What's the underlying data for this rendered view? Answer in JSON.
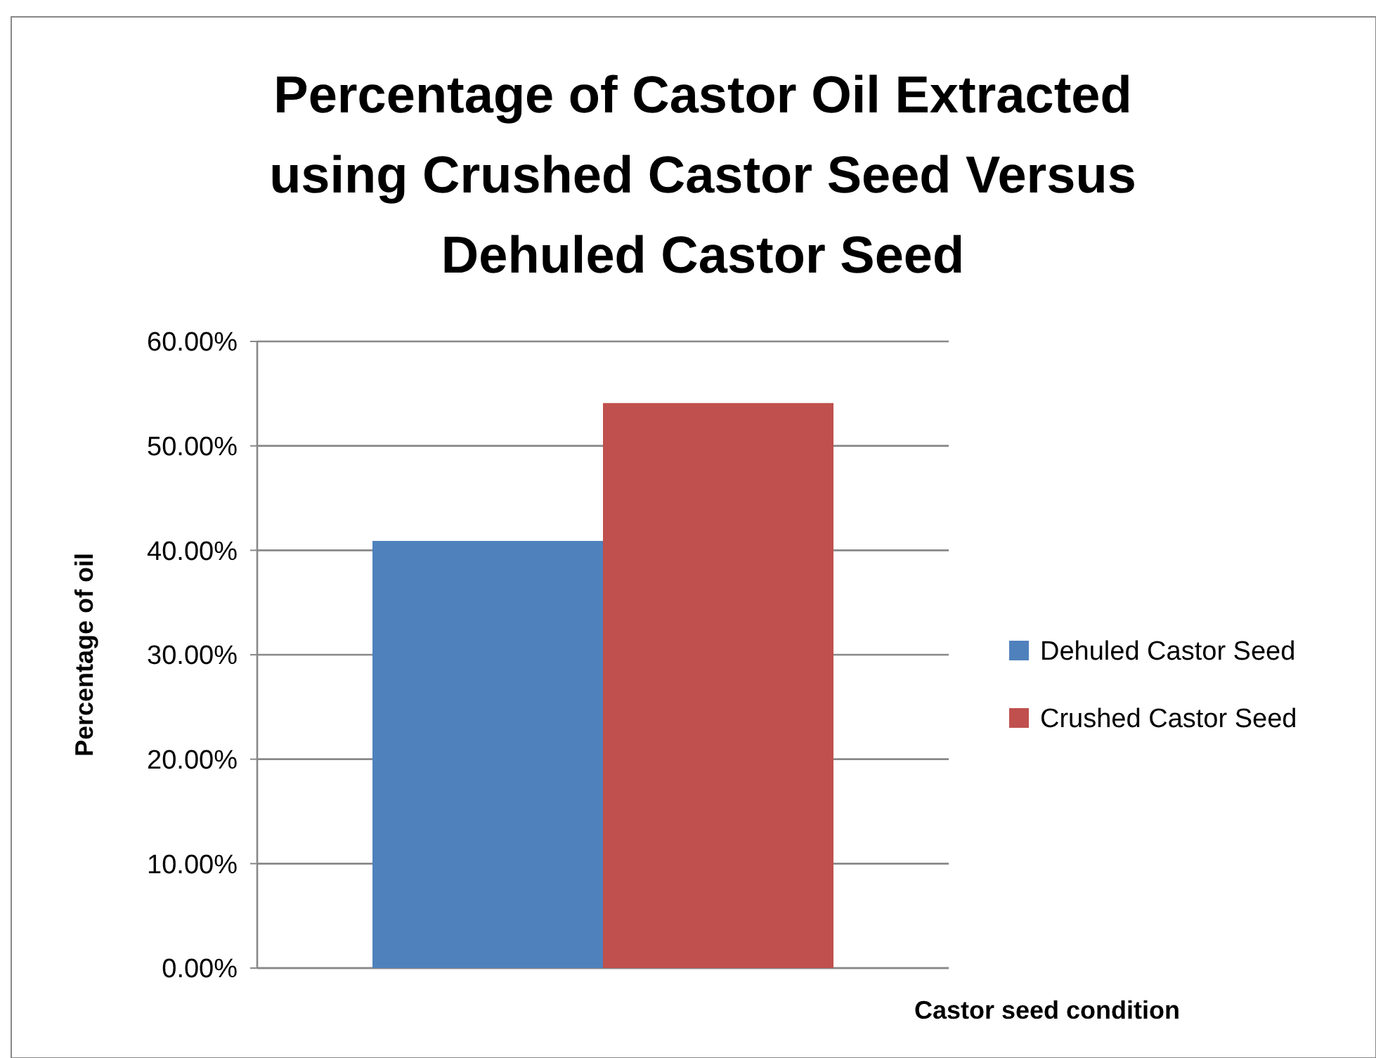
{
  "chart_data": {
    "type": "bar",
    "title": "Percentage of Castor Oil Extracted using Crushed Castor Seed Versus Dehuled Castor Seed",
    "xlabel": "Castor seed condition",
    "ylabel": "Percentage of oil",
    "categories": [
      null
    ],
    "series": [
      {
        "name": "Dehuled Castor Seed",
        "color": "#4f81bd",
        "values": [
          40.9
        ]
      },
      {
        "name": "Crushed Castor Seed",
        "color": "#c0504d",
        "values": [
          54.1
        ]
      }
    ],
    "ylim": [
      0,
      60
    ],
    "yticks": [
      {
        "value": 0,
        "label": "0.00%"
      },
      {
        "value": 10,
        "label": "10.00%"
      },
      {
        "value": 20,
        "label": "20.00%"
      },
      {
        "value": 30,
        "label": "30.00%"
      },
      {
        "value": 40,
        "label": "40.00%"
      },
      {
        "value": 50,
        "label": "50.00%"
      },
      {
        "value": 60,
        "label": "60.00%"
      }
    ],
    "grid": "y",
    "legend": "right"
  }
}
